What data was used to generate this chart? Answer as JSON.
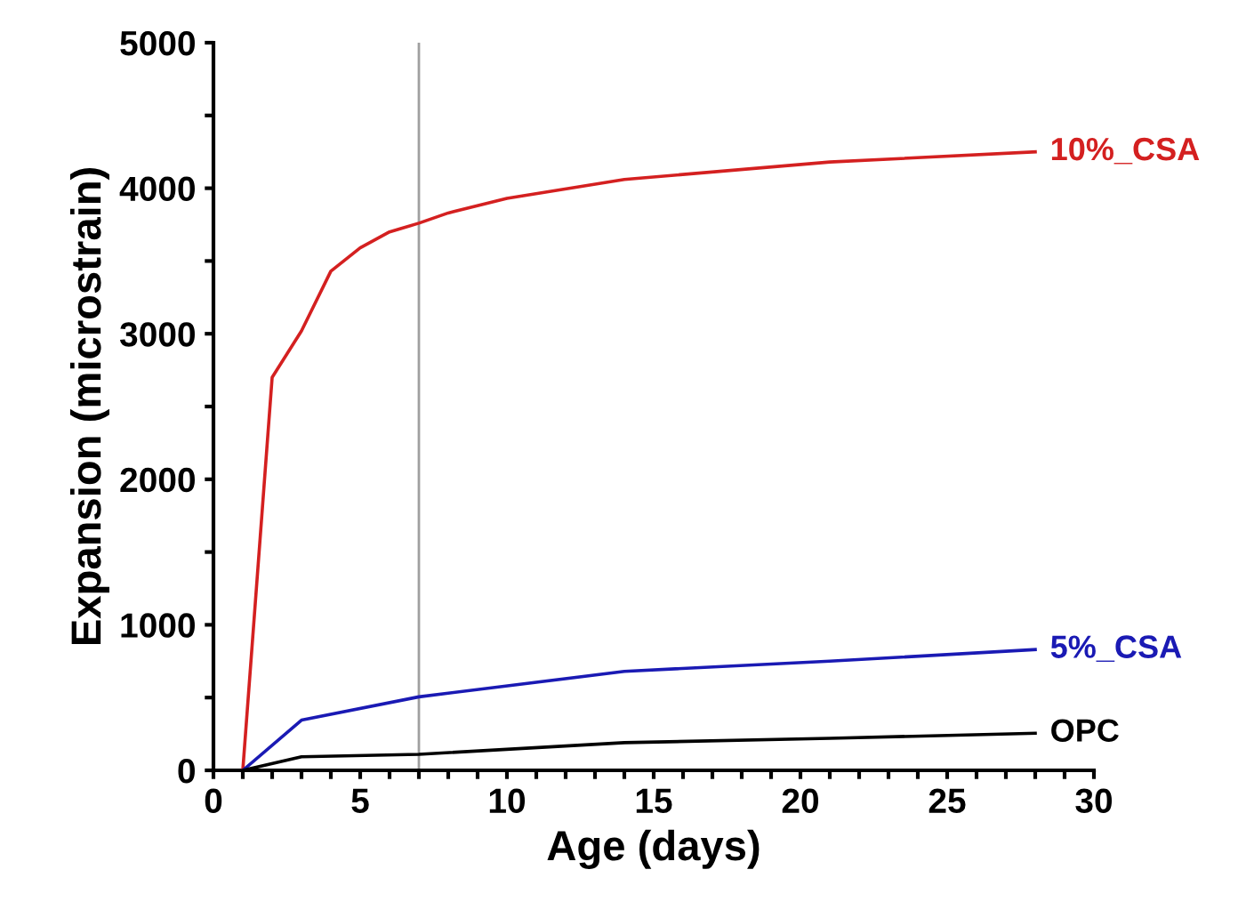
{
  "chart_data": {
    "type": "line",
    "xlabel": "Age (days)",
    "ylabel": "Expansion (microstrain)",
    "xlim": [
      0,
      30
    ],
    "ylim": [
      0,
      5000
    ],
    "xticks": [
      0,
      {
        "value": 1,
        "label": null
      },
      {
        "value": 2,
        "label": null
      },
      {
        "value": 3,
        "label": null
      },
      {
        "value": 4,
        "label": null
      },
      5,
      {
        "value": 6,
        "label": null
      },
      {
        "value": 7,
        "label": null
      },
      {
        "value": 8,
        "label": null
      },
      {
        "value": 9,
        "label": null
      },
      10,
      {
        "value": 11,
        "label": null
      },
      {
        "value": 12,
        "label": null
      },
      {
        "value": 13,
        "label": null
      },
      {
        "value": 14,
        "label": null
      },
      15,
      {
        "value": 16,
        "label": null
      },
      {
        "value": 17,
        "label": null
      },
      {
        "value": 18,
        "label": null
      },
      {
        "value": 19,
        "label": null
      },
      20,
      {
        "value": 21,
        "label": null
      },
      {
        "value": 22,
        "label": null
      },
      {
        "value": 23,
        "label": null
      },
      {
        "value": 24,
        "label": null
      },
      25,
      {
        "value": 26,
        "label": null
      },
      {
        "value": 27,
        "label": null
      },
      {
        "value": 28,
        "label": null
      },
      {
        "value": 29,
        "label": null
      },
      30
    ],
    "yticks": [
      0,
      {
        "value": 500,
        "label": null
      },
      1000,
      {
        "value": 1500,
        "label": null
      },
      2000,
      {
        "value": 2500,
        "label": null
      },
      3000,
      {
        "value": 3500,
        "label": null
      },
      4000,
      {
        "value": 4500,
        "label": null
      },
      5000
    ],
    "grid": false,
    "legend": false,
    "marker": "none",
    "line_style": "solid",
    "ref_lines": [
      {
        "axis": "x",
        "value": 7,
        "color": "#a0a0a0"
      }
    ],
    "series": [
      {
        "name": "10%_CSA",
        "color": "#d42020",
        "x": [
          1,
          2,
          3,
          4,
          5,
          6,
          7,
          8,
          10,
          14,
          21,
          28
        ],
        "values": [
          0,
          2700,
          3020,
          3430,
          3590,
          3700,
          3760,
          3830,
          3930,
          4060,
          4180,
          4250
        ]
      },
      {
        "name": "5%_CSA",
        "color": "#1a1ab4",
        "x": [
          1,
          3,
          7,
          14,
          21,
          28
        ],
        "values": [
          0,
          345,
          505,
          680,
          750,
          830
        ]
      },
      {
        "name": "OPC",
        "color": "#000000",
        "x": [
          1,
          3,
          7,
          14,
          21,
          28
        ],
        "values": [
          0,
          93,
          110,
          190,
          220,
          255
        ]
      }
    ]
  }
}
